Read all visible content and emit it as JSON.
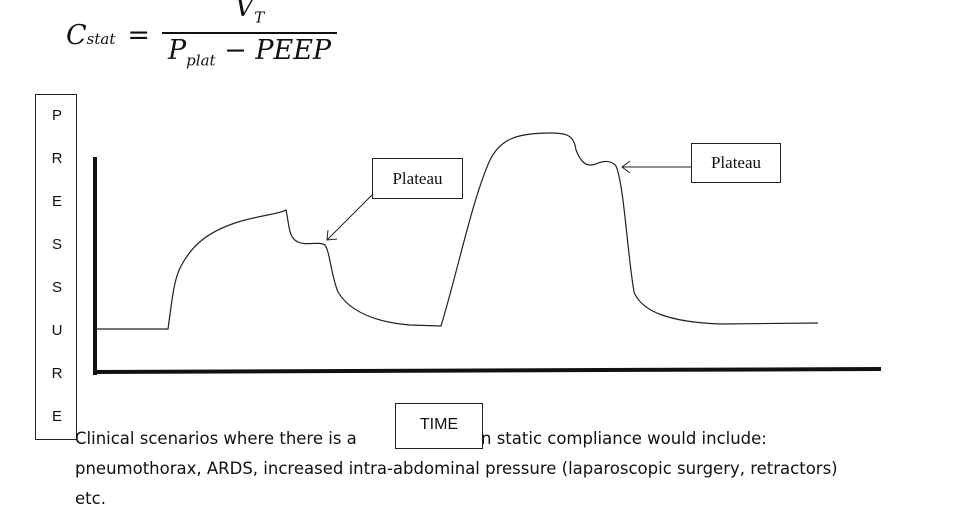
{
  "formula": {
    "lhs": "C",
    "lhs_sub": "stat",
    "equals": "=",
    "numerator": "V",
    "numerator_sub": "T",
    "denominator_main": "P",
    "denominator_sub": "plat",
    "denominator_rest": " − PEEP"
  },
  "graph": {
    "y_axis_letters": [
      "P",
      "R",
      "E",
      "S",
      "S",
      "U",
      "R",
      "E"
    ],
    "x_axis_label": "TIME",
    "callouts": [
      "Plateau",
      "Plateau"
    ]
  },
  "text": {
    "line1_before": "Clinical scenarios where there is a ",
    "line1_after": "ion in static compliance would include:",
    "line2": "pneumothorax, ARDS, increased intra-abdominal pressure (laparoscopic surgery, retractors)",
    "line3": "etc."
  }
}
